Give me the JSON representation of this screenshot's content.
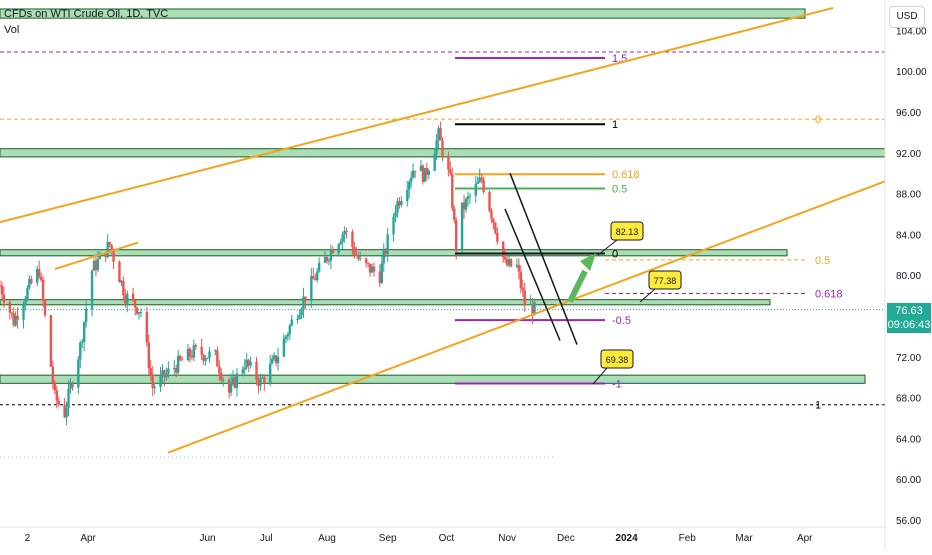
{
  "header": {
    "title": "CFDs on WTI Crude Oil, 1D, TVC",
    "indicator": "Vol",
    "currency": "USD"
  },
  "last_price": {
    "value": "76.63",
    "countdown": "09:06:43",
    "color": "#22ab94"
  },
  "colors": {
    "up": "#26a69a",
    "down": "#ef5350",
    "trend": "#f7a21b",
    "zone": "#8fd19e",
    "zone_edge": "#1b5e20",
    "fib_purple": "#9c27b0",
    "fib_orange": "#f7a21b",
    "fib_green": "#4caf50",
    "callout": "#ffeb3b",
    "arrow": "#5cb85c"
  },
  "chart_data": {
    "type": "candlestick",
    "title": "CFDs on WTI Crude Oil, 1D, TVC",
    "y_axis": {
      "ticks": [
        56,
        60,
        64,
        68,
        72,
        76,
        80,
        84,
        88,
        92,
        96,
        100,
        104
      ],
      "ylim": [
        56,
        106
      ],
      "position": "right"
    },
    "x_axis": {
      "ticks": [
        "2",
        "Apr",
        "Jun",
        "Jul",
        "Aug",
        "Sep",
        "Oct",
        "Nov",
        "Dec",
        "2024",
        "Feb",
        "Mar",
        "Apr"
      ]
    },
    "price_path": [
      {
        "date": "2023-02-15",
        "close": 79.0
      },
      {
        "date": "2023-02-22",
        "close": 75.5
      },
      {
        "date": "2023-03-01",
        "close": 78.5
      },
      {
        "date": "2023-03-07",
        "close": 80.5
      },
      {
        "date": "2023-03-15",
        "close": 68.0
      },
      {
        "date": "2023-03-20",
        "close": 66.5
      },
      {
        "date": "2023-03-28",
        "close": 73.0
      },
      {
        "date": "2023-04-03",
        "close": 80.5
      },
      {
        "date": "2023-04-12",
        "close": 83.0
      },
      {
        "date": "2023-04-20",
        "close": 78.0
      },
      {
        "date": "2023-04-28",
        "close": 76.5
      },
      {
        "date": "2023-05-04",
        "close": 69.0
      },
      {
        "date": "2023-05-15",
        "close": 71.0
      },
      {
        "date": "2023-05-25",
        "close": 72.5
      },
      {
        "date": "2023-06-05",
        "close": 72.0
      },
      {
        "date": "2023-06-12",
        "close": 68.5
      },
      {
        "date": "2023-06-20",
        "close": 71.5
      },
      {
        "date": "2023-06-28",
        "close": 69.5
      },
      {
        "date": "2023-07-06",
        "close": 71.8
      },
      {
        "date": "2023-07-14",
        "close": 75.4
      },
      {
        "date": "2023-07-25",
        "close": 79.5
      },
      {
        "date": "2023-08-04",
        "close": 82.8
      },
      {
        "date": "2023-08-10",
        "close": 84.4
      },
      {
        "date": "2023-08-18",
        "close": 81.2
      },
      {
        "date": "2023-08-28",
        "close": 80.0
      },
      {
        "date": "2023-09-05",
        "close": 86.7
      },
      {
        "date": "2023-09-15",
        "close": 90.8
      },
      {
        "date": "2023-09-20",
        "close": 89.7
      },
      {
        "date": "2023-09-27",
        "close": 93.7
      },
      {
        "date": "2023-10-03",
        "close": 89.2
      },
      {
        "date": "2023-10-06",
        "close": 82.8
      },
      {
        "date": "2023-10-09",
        "close": 86.4
      },
      {
        "date": "2023-10-13",
        "close": 87.7
      },
      {
        "date": "2023-10-19",
        "close": 89.4
      },
      {
        "date": "2023-10-25",
        "close": 85.4
      },
      {
        "date": "2023-10-31",
        "close": 81.0
      },
      {
        "date": "2023-11-06",
        "close": 80.8
      },
      {
        "date": "2023-11-10",
        "close": 77.2
      },
      {
        "date": "2023-11-15",
        "close": 76.6
      }
    ],
    "horizontal_levels": [
      {
        "label": "1.5",
        "price": 101.3,
        "color": "#9c27b0"
      },
      {
        "label": "1",
        "price": 94.8,
        "color": "#000000"
      },
      {
        "label": "0",
        "price": 95.3,
        "color": "#f7a21b"
      },
      {
        "label": "0.618",
        "price": 89.9,
        "color": "#f7a21b"
      },
      {
        "label": "0.5",
        "price": 88.5,
        "color": "#4caf50"
      },
      {
        "label": "0",
        "price": 82.13,
        "color": "#000000"
      },
      {
        "label": "0.5",
        "price": 81.5,
        "color": "#f7a21b"
      },
      {
        "label": "0.618",
        "price": 78.2,
        "color": "#9c27b0"
      },
      {
        "label": "-0.5",
        "price": 75.6,
        "color": "#9c27b0"
      },
      {
        "label": "-1",
        "price": 69.38,
        "color": "#9c27b0"
      },
      {
        "label": "1",
        "price": 67.3,
        "color": "#000000"
      }
    ],
    "zones": [
      {
        "low": 105.2,
        "high": 106.1
      },
      {
        "low": 91.6,
        "high": 92.4
      },
      {
        "low": 81.9,
        "high": 82.5
      },
      {
        "low": 77.1,
        "high": 77.6
      },
      {
        "low": 69.4,
        "high": 70.2
      }
    ],
    "callouts": [
      "82.13",
      "77.38",
      "69.38"
    ]
  }
}
